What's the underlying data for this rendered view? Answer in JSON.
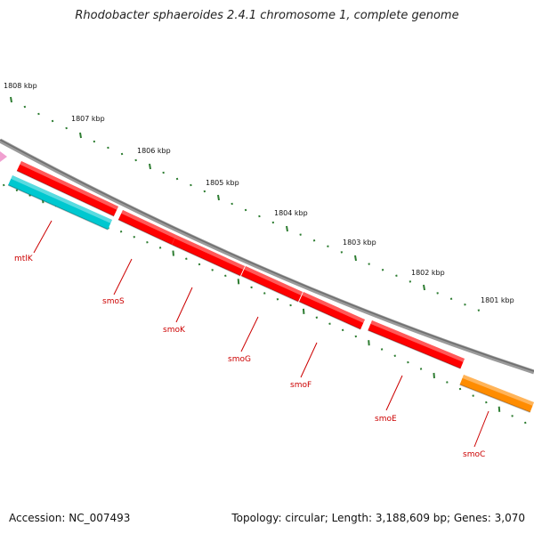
{
  "title": "Rhodobacter sphaeroides 2.4.1 chromosome 1, complete genome",
  "footer": {
    "accession": "Accession: NC_007493",
    "info": "Topology: circular; Length: 3,188,609 bp; Genes: 3,070"
  },
  "kbp_labels": [
    "1808 kbp",
    "1807 kbp",
    "1806 kbp",
    "1805 kbp",
    "1804 kbp",
    "1803 kbp",
    "1802 kbp",
    "1801 kbp"
  ],
  "genes": [
    {
      "name": "mtlK",
      "color": "#00c8d0",
      "strand": "minus"
    },
    {
      "name": "smoS",
      "color": "#ff0000",
      "strand": "plus"
    },
    {
      "name": "smoK",
      "color": "#ff0000",
      "strand": "plus"
    },
    {
      "name": "smoG",
      "color": "#ff0000",
      "strand": "plus"
    },
    {
      "name": "smoF",
      "color": "#ff0000",
      "strand": "plus"
    },
    {
      "name": "smoE",
      "color": "#ff0000",
      "strand": "plus"
    },
    {
      "name": "smoC",
      "color": "#ff8c00",
      "strand": "minus"
    }
  ],
  "colors": {
    "backbone": "#808080",
    "tick": "#2e7d32",
    "gene_label": "#cc0000",
    "marker": "#f0a0d0"
  }
}
